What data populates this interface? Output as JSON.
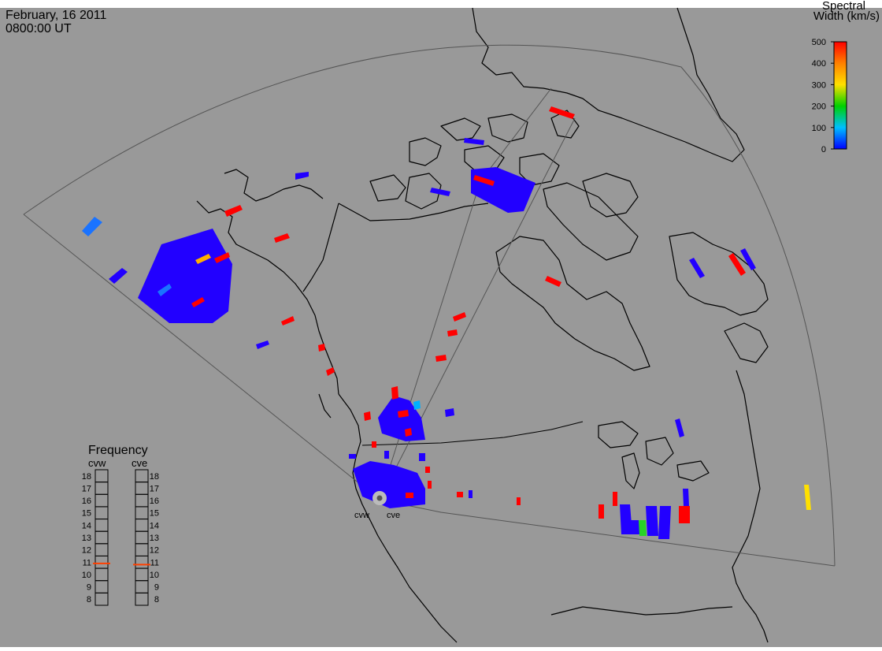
{
  "header": {
    "date": "February, 16 2011",
    "time": "0800:00 UT"
  },
  "colorbar": {
    "title_line1": "Spectral",
    "title_line2": "Width (km/s)",
    "ticks": [
      "500",
      "400",
      "300",
      "200",
      "100",
      "0"
    ],
    "colors": [
      "#ff0000",
      "#ff8000",
      "#ffe000",
      "#00d000",
      "#00c0ff",
      "#0000ff"
    ]
  },
  "radars": {
    "west": {
      "code": "cvw"
    },
    "east": {
      "code": "cve"
    }
  },
  "frequency": {
    "title": "Frequency",
    "col_west": "cvw",
    "col_east": "cve",
    "scale": [
      "18",
      "17",
      "16",
      "15",
      "14",
      "13",
      "12",
      "11",
      "10",
      "9",
      "8"
    ],
    "cvw_value": 10.9,
    "cve_value": 10.8,
    "marker_color": "#ff4000"
  },
  "map": {
    "background": "#999999",
    "coastline_color": "#000000",
    "fov_color": "#555555"
  }
}
